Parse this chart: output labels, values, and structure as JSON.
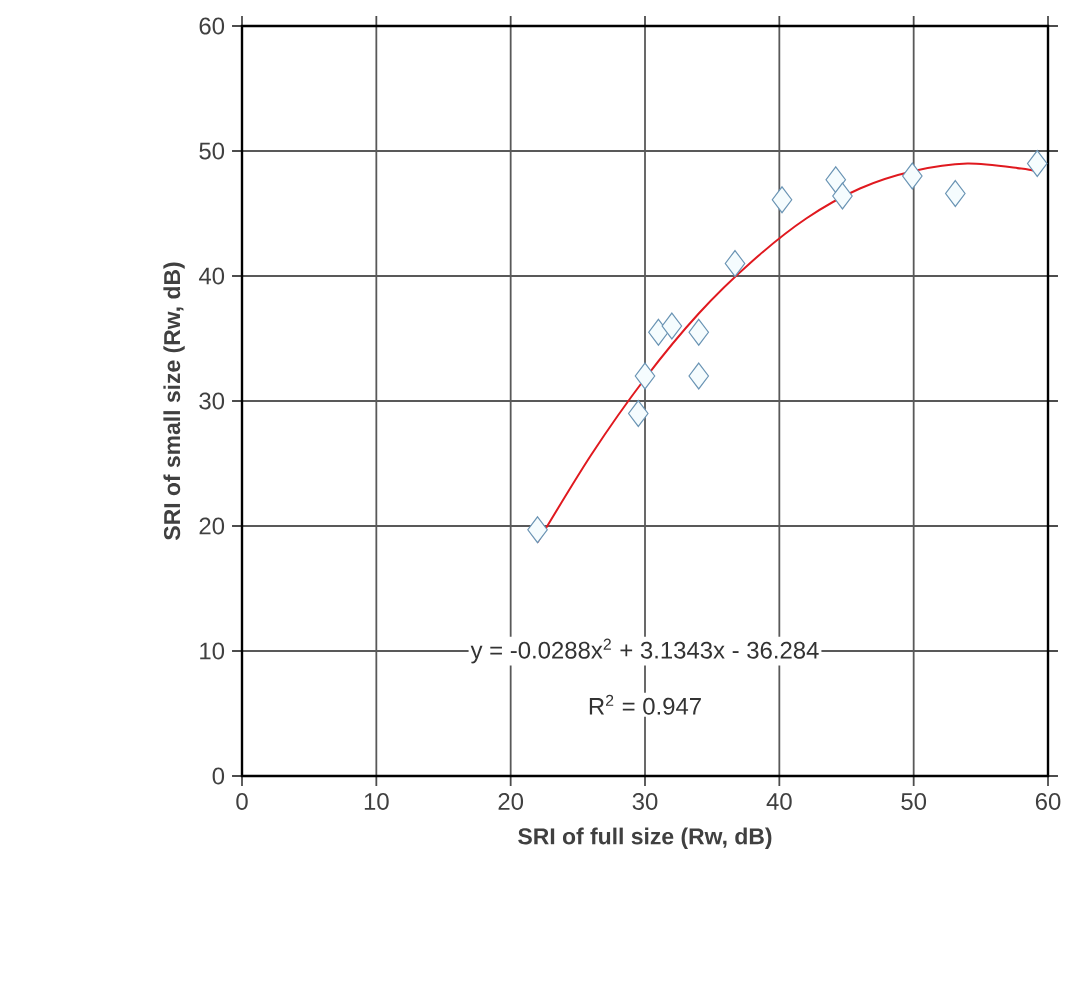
{
  "chart_data": {
    "type": "scatter",
    "xlabel": "SRI of full size (Rw, dB)",
    "ylabel": "SRI of small size (Rw, dB)",
    "xlim": [
      0,
      60
    ],
    "ylim": [
      0,
      60
    ],
    "xticks": [
      0,
      10,
      20,
      30,
      40,
      50,
      60
    ],
    "yticks": [
      0,
      10,
      20,
      30,
      40,
      50,
      60
    ],
    "grid": true,
    "series": [
      {
        "color": "#6a94b4",
        "marker": "diamond",
        "x": [
          22,
          29.5,
          30,
          31,
          32,
          34,
          34,
          36.7,
          40.2,
          44.2,
          44.7,
          49.9,
          53.1,
          59.2
        ],
        "values": [
          19.7,
          29,
          32,
          35.5,
          36,
          35.5,
          32,
          41,
          46.1,
          47.7,
          46.4,
          48,
          46.6,
          49
        ]
      },
      {
        "type": "line",
        "color": "#e0191f",
        "marker": "none",
        "line_style": "solid",
        "x": [
          22,
          26,
          30,
          34,
          38,
          42,
          46,
          50,
          54,
          58,
          59
        ],
        "values": [
          18.7,
          25.7,
          31.8,
          37.0,
          41.2,
          44.6,
          47.0,
          48.4,
          49.0,
          48.6,
          48.4
        ]
      }
    ],
    "annotations": [
      "y = -0.0288x$^{2}$ + 3.1343x - 36.284",
      "R$^{2}$ = 0.947"
    ]
  }
}
